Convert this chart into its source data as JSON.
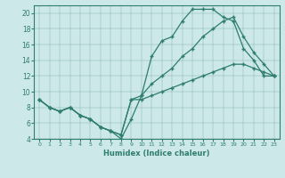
{
  "xlabel": "Humidex (Indice chaleur)",
  "bg_color": "#cce8e8",
  "line_color": "#2e7d6e",
  "marker": "+",
  "xlim": [
    -0.5,
    23.5
  ],
  "ylim": [
    4,
    21
  ],
  "xticks": [
    0,
    1,
    2,
    3,
    4,
    5,
    6,
    7,
    8,
    9,
    10,
    11,
    12,
    13,
    14,
    15,
    16,
    17,
    18,
    19,
    20,
    21,
    22,
    23
  ],
  "yticks": [
    4,
    6,
    8,
    10,
    12,
    14,
    16,
    18,
    20
  ],
  "line1_x": [
    0,
    1,
    2,
    3,
    4,
    5,
    6,
    7,
    8,
    9,
    10,
    11,
    12,
    13,
    14,
    15,
    16,
    17,
    18,
    19,
    20,
    21,
    22,
    23
  ],
  "line1_y": [
    9.0,
    8.0,
    7.5,
    8.0,
    7.0,
    6.5,
    5.5,
    5.0,
    4.5,
    9.0,
    9.0,
    9.5,
    10.0,
    10.5,
    11.0,
    11.5,
    12.0,
    12.5,
    13.0,
    13.5,
    13.5,
    13.0,
    12.5,
    12.0
  ],
  "line2_x": [
    0,
    1,
    2,
    3,
    4,
    5,
    6,
    7,
    8,
    9,
    10,
    11,
    12,
    13,
    14,
    15,
    16,
    17,
    18,
    19,
    20,
    21,
    22,
    23
  ],
  "line2_y": [
    9.0,
    8.0,
    7.5,
    8.0,
    7.0,
    6.5,
    5.5,
    5.0,
    4.0,
    6.5,
    9.5,
    14.5,
    16.5,
    17.0,
    19.0,
    20.5,
    20.5,
    20.5,
    19.5,
    19.0,
    15.5,
    14.0,
    12.0,
    12.0
  ],
  "line3_x": [
    0,
    1,
    2,
    3,
    4,
    5,
    6,
    7,
    8,
    9,
    10,
    11,
    12,
    13,
    14,
    15,
    16,
    17,
    18,
    19,
    20,
    21,
    22,
    23
  ],
  "line3_y": [
    9.0,
    8.0,
    7.5,
    8.0,
    7.0,
    6.5,
    5.5,
    5.0,
    4.5,
    9.0,
    9.5,
    11.0,
    12.0,
    13.0,
    14.5,
    15.5,
    17.0,
    18.0,
    19.0,
    19.5,
    17.0,
    15.0,
    13.5,
    12.0
  ]
}
